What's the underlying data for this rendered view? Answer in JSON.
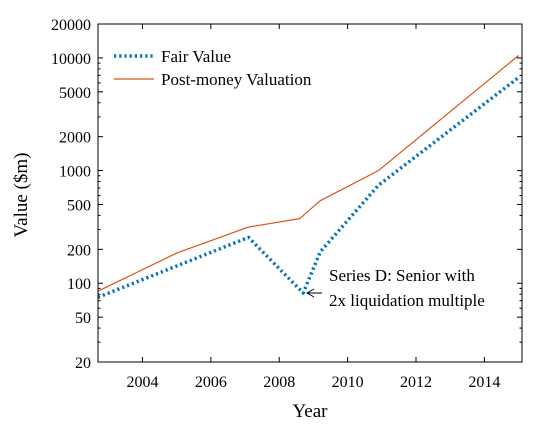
{
  "chart_data": {
    "type": "line",
    "title": "",
    "xlabel": "Year",
    "ylabel": "Value ($m)",
    "xlim": [
      2002.7,
      2015.1
    ],
    "ylim": [
      20,
      20000
    ],
    "yscale": "log",
    "x_ticks": [
      2004,
      2006,
      2008,
      2010,
      2012,
      2014
    ],
    "y_ticks": [
      20,
      50,
      100,
      200,
      500,
      1000,
      2000,
      5000,
      10000,
      20000
    ],
    "grid": false,
    "legend": "top-left",
    "series": [
      {
        "name": "Fair Value",
        "color": "#0072BD",
        "style": "dotted",
        "x": [
          2002.7,
          2007.1,
          2008.7,
          2009.2,
          2010.9,
          2015.0
        ],
        "y": [
          75,
          255,
          82,
          190,
          740,
          6700
        ]
      },
      {
        "name": "Post-money Valuation",
        "color": "#D95319",
        "style": "solid",
        "x": [
          2002.7,
          2005.0,
          2007.1,
          2008.6,
          2009.2,
          2010.9,
          2015.0
        ],
        "y": [
          85,
          185,
          315,
          375,
          540,
          1000,
          10500
        ]
      }
    ],
    "annotations": [
      {
        "lines": [
          "Series D: Senior with",
          "2x liquidation multiple"
        ],
        "arrow_to": [
          2008.7,
          82
        ]
      }
    ]
  }
}
